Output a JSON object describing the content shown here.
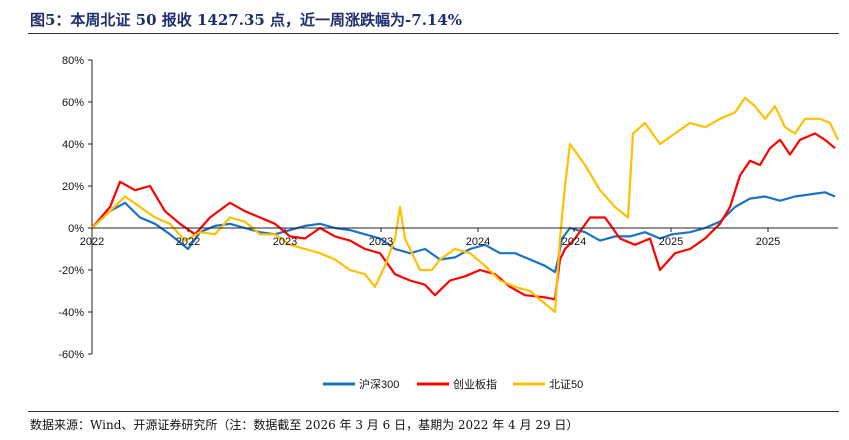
{
  "title": "图5：本周北证 50 报收 1427.35 点，近一周涨跌幅为-7.14%",
  "source": "数据来源：Wind、开源证券研究所（注：数据截至 2026 年 3 月 6 日，基期为 2022 年 4 月 29 日）",
  "chart_data": {
    "type": "line",
    "title": "本周北证 50 报收 1427.35 点，近一周涨跌幅为-7.14%",
    "xlabel": "",
    "ylabel": "",
    "xlim": [
      0,
      746
    ],
    "ylim": [
      -60,
      80
    ],
    "yticks": [
      -60,
      -40,
      -20,
      0,
      20,
      40,
      60,
      80
    ],
    "ytick_labels": [
      "-60%",
      "-40%",
      "-20%",
      "0%",
      "20%",
      "40%",
      "60%",
      "80%"
    ],
    "xticks": [
      0,
      96,
      193,
      289,
      386,
      482,
      579,
      676
    ],
    "xtick_labels": [
      "2022",
      "2022",
      "2023",
      "2023",
      "2024",
      "2024",
      "2025",
      "2025"
    ],
    "legend_position": "bottom",
    "series": [
      {
        "name": "沪深300",
        "color": "#1a72c4",
        "points": [
          [
            0,
            0
          ],
          [
            18,
            8
          ],
          [
            33,
            12
          ],
          [
            48,
            5
          ],
          [
            63,
            2
          ],
          [
            78,
            -3
          ],
          [
            96,
            -10
          ],
          [
            108,
            -2
          ],
          [
            123,
            1
          ],
          [
            138,
            2
          ],
          [
            153,
            0
          ],
          [
            168,
            -2
          ],
          [
            183,
            -3
          ],
          [
            198,
            -1
          ],
          [
            213,
            1
          ],
          [
            228,
            2
          ],
          [
            243,
            0
          ],
          [
            258,
            -1
          ],
          [
            273,
            -3
          ],
          [
            288,
            -5
          ],
          [
            303,
            -10
          ],
          [
            318,
            -12
          ],
          [
            333,
            -10
          ],
          [
            348,
            -15
          ],
          [
            363,
            -14
          ],
          [
            378,
            -10
          ],
          [
            393,
            -8
          ],
          [
            408,
            -12
          ],
          [
            423,
            -12
          ],
          [
            438,
            -15
          ],
          [
            453,
            -18
          ],
          [
            463,
            -21
          ],
          [
            466,
            -15
          ],
          [
            470,
            -5
          ],
          [
            478,
            0
          ],
          [
            493,
            -2
          ],
          [
            508,
            -6
          ],
          [
            523,
            -4
          ],
          [
            538,
            -4
          ],
          [
            553,
            -2
          ],
          [
            568,
            -5
          ],
          [
            580,
            -3
          ],
          [
            598,
            -2
          ],
          [
            613,
            0
          ],
          [
            628,
            3
          ],
          [
            643,
            10
          ],
          [
            658,
            14
          ],
          [
            673,
            15
          ],
          [
            688,
            13
          ],
          [
            703,
            15
          ],
          [
            718,
            16
          ],
          [
            733,
            17
          ],
          [
            743,
            15
          ]
        ]
      },
      {
        "name": "创业板指",
        "color": "#ff0000",
        "points": [
          [
            0,
            0
          ],
          [
            18,
            10
          ],
          [
            28,
            22
          ],
          [
            43,
            18
          ],
          [
            58,
            20
          ],
          [
            73,
            8
          ],
          [
            88,
            2
          ],
          [
            103,
            -3
          ],
          [
            118,
            5
          ],
          [
            138,
            12
          ],
          [
            153,
            8
          ],
          [
            168,
            5
          ],
          [
            183,
            2
          ],
          [
            198,
            -4
          ],
          [
            213,
            -5
          ],
          [
            228,
            0
          ],
          [
            243,
            -4
          ],
          [
            258,
            -6
          ],
          [
            273,
            -10
          ],
          [
            288,
            -12
          ],
          [
            303,
            -22
          ],
          [
            318,
            -25
          ],
          [
            333,
            -27
          ],
          [
            343,
            -32
          ],
          [
            358,
            -25
          ],
          [
            373,
            -23
          ],
          [
            388,
            -20
          ],
          [
            403,
            -22
          ],
          [
            418,
            -28
          ],
          [
            433,
            -32
          ],
          [
            453,
            -33
          ],
          [
            463,
            -34
          ],
          [
            468,
            -15
          ],
          [
            473,
            -10
          ],
          [
            483,
            -5
          ],
          [
            498,
            5
          ],
          [
            513,
            5
          ],
          [
            528,
            -5
          ],
          [
            543,
            -8
          ],
          [
            558,
            -5
          ],
          [
            568,
            -20
          ],
          [
            583,
            -12
          ],
          [
            598,
            -10
          ],
          [
            613,
            -5
          ],
          [
            628,
            2
          ],
          [
            638,
            10
          ],
          [
            648,
            25
          ],
          [
            658,
            32
          ],
          [
            668,
            30
          ],
          [
            678,
            38
          ],
          [
            688,
            42
          ],
          [
            698,
            35
          ],
          [
            708,
            42
          ],
          [
            723,
            45
          ],
          [
            733,
            42
          ],
          [
            743,
            38
          ]
        ]
      },
      {
        "name": "北证50",
        "color": "#ffc000",
        "points": [
          [
            0,
            0
          ],
          [
            18,
            8
          ],
          [
            33,
            15
          ],
          [
            48,
            10
          ],
          [
            63,
            5
          ],
          [
            78,
            2
          ],
          [
            93,
            -6
          ],
          [
            108,
            -2
          ],
          [
            123,
            -3
          ],
          [
            138,
            5
          ],
          [
            153,
            3
          ],
          [
            168,
            -3
          ],
          [
            183,
            -3
          ],
          [
            198,
            -8
          ],
          [
            213,
            -10
          ],
          [
            228,
            -12
          ],
          [
            243,
            -15
          ],
          [
            258,
            -20
          ],
          [
            273,
            -22
          ],
          [
            283,
            -28
          ],
          [
            293,
            -18
          ],
          [
            303,
            -5
          ],
          [
            308,
            10
          ],
          [
            313,
            -5
          ],
          [
            328,
            -20
          ],
          [
            340,
            -20
          ],
          [
            348,
            -15
          ],
          [
            363,
            -10
          ],
          [
            378,
            -12
          ],
          [
            393,
            -18
          ],
          [
            408,
            -25
          ],
          [
            423,
            -28
          ],
          [
            438,
            -30
          ],
          [
            453,
            -36
          ],
          [
            463,
            -40
          ],
          [
            468,
            -5
          ],
          [
            473,
            20
          ],
          [
            478,
            40
          ],
          [
            493,
            30
          ],
          [
            508,
            18
          ],
          [
            523,
            10
          ],
          [
            536,
            5
          ],
          [
            541,
            45
          ],
          [
            553,
            50
          ],
          [
            568,
            40
          ],
          [
            583,
            45
          ],
          [
            598,
            50
          ],
          [
            613,
            48
          ],
          [
            628,
            52
          ],
          [
            643,
            55
          ],
          [
            653,
            62
          ],
          [
            663,
            58
          ],
          [
            673,
            52
          ],
          [
            683,
            58
          ],
          [
            693,
            48
          ],
          [
            703,
            45
          ],
          [
            713,
            52
          ],
          [
            728,
            52
          ],
          [
            738,
            50
          ],
          [
            746,
            42
          ]
        ]
      }
    ]
  }
}
